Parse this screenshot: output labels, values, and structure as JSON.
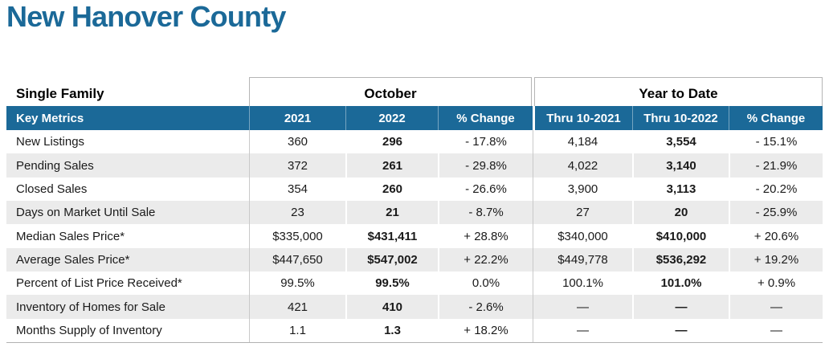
{
  "page": {
    "title": "New Hanover County"
  },
  "table": {
    "section_label": "Single Family",
    "groups": [
      {
        "label": "October"
      },
      {
        "label": "Year to Date"
      }
    ],
    "header": {
      "metric": "Key Metrics",
      "cols": [
        "2021",
        "2022",
        "% Change",
        "Thru 10-2021",
        "Thru 10-2022",
        "% Change"
      ]
    },
    "rows": [
      {
        "metric": "New Listings",
        "oct_2021": "360",
        "oct_2022": "296",
        "oct_change": "- 17.8%",
        "ytd_2021": "4,184",
        "ytd_2022": "3,554",
        "ytd_change": "- 15.1%"
      },
      {
        "metric": "Pending Sales",
        "oct_2021": "372",
        "oct_2022": "261",
        "oct_change": "- 29.8%",
        "ytd_2021": "4,022",
        "ytd_2022": "3,140",
        "ytd_change": "- 21.9%"
      },
      {
        "metric": "Closed Sales",
        "oct_2021": "354",
        "oct_2022": "260",
        "oct_change": "- 26.6%",
        "ytd_2021": "3,900",
        "ytd_2022": "3,113",
        "ytd_change": "- 20.2%"
      },
      {
        "metric": "Days on Market Until Sale",
        "oct_2021": "23",
        "oct_2022": "21",
        "oct_change": "- 8.7%",
        "ytd_2021": "27",
        "ytd_2022": "20",
        "ytd_change": "- 25.9%"
      },
      {
        "metric": "Median Sales Price*",
        "oct_2021": "$335,000",
        "oct_2022": "$431,411",
        "oct_change": "+ 28.8%",
        "ytd_2021": "$340,000",
        "ytd_2022": "$410,000",
        "ytd_change": "+ 20.6%"
      },
      {
        "metric": "Average Sales Price*",
        "oct_2021": "$447,650",
        "oct_2022": "$547,002",
        "oct_change": "+ 22.2%",
        "ytd_2021": "$449,778",
        "ytd_2022": "$536,292",
        "ytd_change": "+ 19.2%"
      },
      {
        "metric": "Percent of List Price Received*",
        "oct_2021": "99.5%",
        "oct_2022": "99.5%",
        "oct_change": "0.0%",
        "ytd_2021": "100.1%",
        "ytd_2022": "101.0%",
        "ytd_change": "+ 0.9%"
      },
      {
        "metric": "Inventory of Homes for Sale",
        "oct_2021": "421",
        "oct_2022": "410",
        "oct_change": "- 2.6%",
        "ytd_2021": "—",
        "ytd_2022": "—",
        "ytd_change": "—"
      },
      {
        "metric": "Months Supply of Inventory",
        "oct_2021": "1.1",
        "oct_2022": "1.3",
        "oct_change": "+ 18.2%",
        "ytd_2021": "—",
        "ytd_2022": "—",
        "ytd_change": "—"
      }
    ]
  },
  "colors": {
    "accent_blue": "#1b6998",
    "row_alt_gray": "#ebebeb",
    "box_border": "#b5b5b5"
  }
}
